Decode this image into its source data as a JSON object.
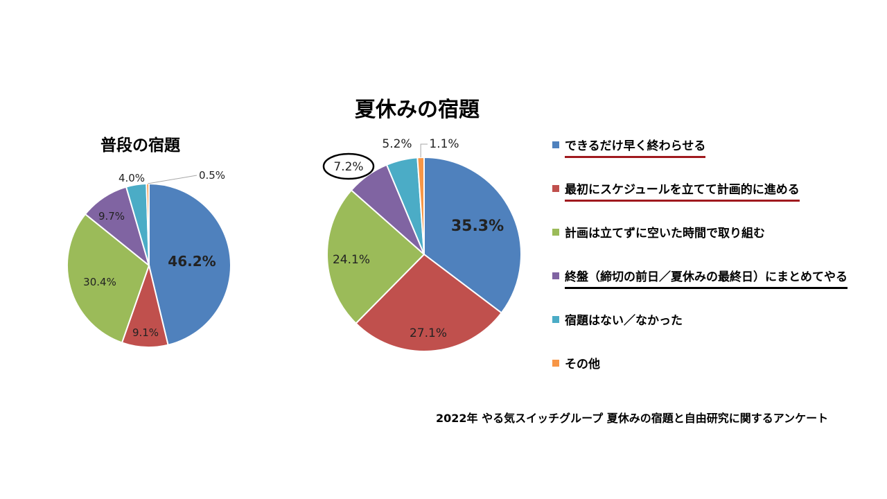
{
  "colors": {
    "series": [
      "#4f81bd",
      "#c0504d",
      "#9bbb59",
      "#8064a2",
      "#4bacc6",
      "#f79646"
    ],
    "underline_red": "#a0191e",
    "underline_black": "#000000"
  },
  "chart_data": [
    {
      "type": "pie",
      "title": "普段の宿題",
      "categories": [
        "できるだけ早く終わらせる",
        "最初にスケジュールを立てて計画的に進める",
        "計画は立てずに空いた時間で取り組む",
        "終盤（締切の前日／夏休みの最終日）にまとめてやる",
        "宿題はない／なかった",
        "その他"
      ],
      "values": [
        46.2,
        9.1,
        30.4,
        9.7,
        4.0,
        0.5
      ],
      "labels": [
        "46.2%",
        "9.1%",
        "30.4%",
        "9.7%",
        "4.0%",
        "0.5%"
      ]
    },
    {
      "type": "pie",
      "title": "夏休みの宿題",
      "categories": [
        "できるだけ早く終わらせる",
        "最初にスケジュールを立てて計画的に進める",
        "計画は立てずに空いた時間で取り組む",
        "終盤（締切の前日／夏休みの最終日）にまとめてやる",
        "宿題はない／なかった",
        "その他"
      ],
      "values": [
        35.3,
        27.1,
        24.1,
        7.2,
        5.2,
        1.1
      ],
      "labels": [
        "35.3%",
        "27.1%",
        "24.1%",
        "7.2%",
        "5.2%",
        "1.1%"
      ],
      "highlighted_label": "7.2%"
    }
  ],
  "legend": [
    {
      "label": "できるだけ早く終わらせる",
      "underline": "red"
    },
    {
      "label": "最初にスケジュールを立てて計画的に進める",
      "underline": "red"
    },
    {
      "label": "計画は立てずに空いた時間で取り組む",
      "underline": "none"
    },
    {
      "label": "終盤（締切の前日／夏休みの最終日）にまとめてやる",
      "underline": "black"
    },
    {
      "label": "宿題はない／なかった",
      "underline": "none"
    },
    {
      "label": "その他",
      "underline": "none"
    }
  ],
  "source": "2022年 やる気スイッチグループ 夏休みの宿題と自由研究に関するアンケート"
}
